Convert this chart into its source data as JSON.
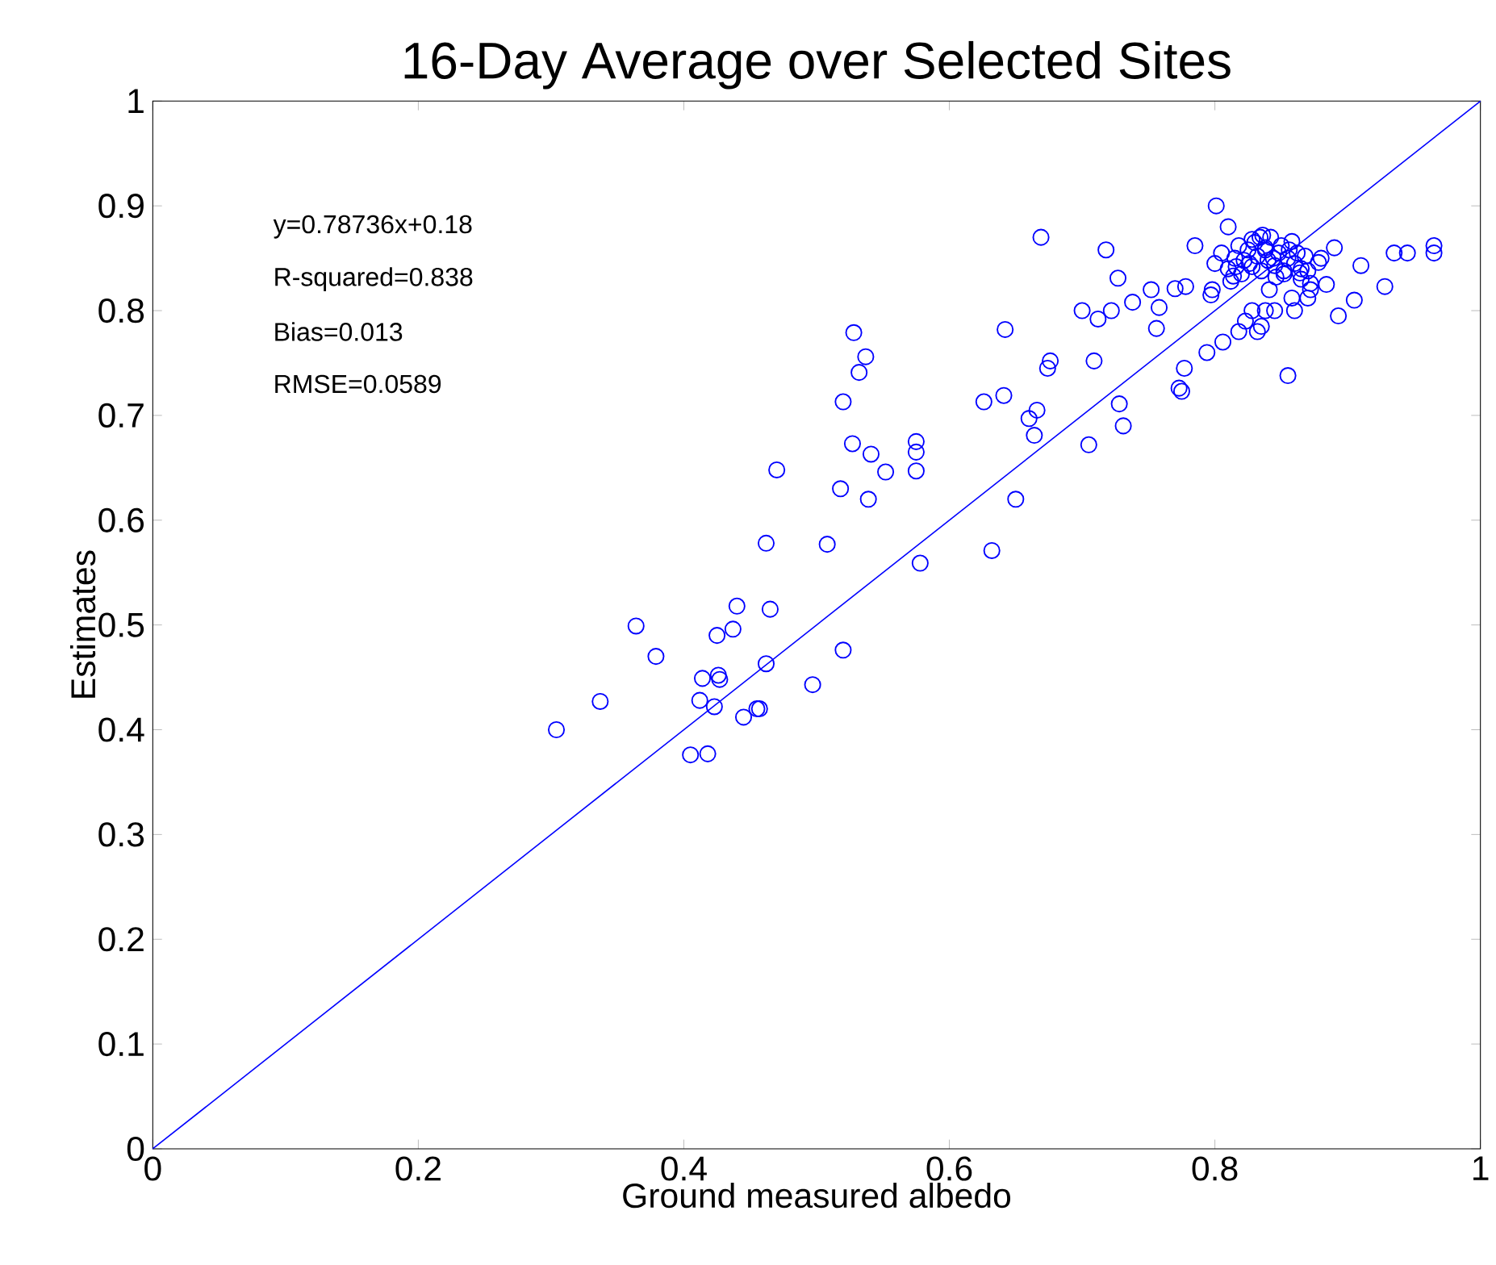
{
  "chart_data": {
    "type": "scatter",
    "title": "16-Day Average over Selected Sites",
    "xlabel": "Ground measured albedo",
    "ylabel": "Estimates",
    "annotations": [
      "y=0.78736x+0.18",
      "R-squared=0.838",
      "Bias=0.013",
      "RMSE=0.0589"
    ],
    "xlim": [
      0,
      1
    ],
    "ylim": [
      0,
      1
    ],
    "xticks": [
      0,
      0.2,
      0.4,
      0.6,
      0.8,
      1
    ],
    "yticks": [
      0,
      0.1,
      0.2,
      0.3,
      0.4,
      0.5,
      0.6,
      0.7,
      0.8,
      0.9,
      1
    ],
    "series": [
      {
        "color": "#0000ff",
        "marker": "circle",
        "x": [
          0.304,
          0.337,
          0.364,
          0.379,
          0.405,
          0.418,
          0.412,
          0.414,
          0.423,
          0.425,
          0.426,
          0.427,
          0.437,
          0.44,
          0.445,
          0.455,
          0.457,
          0.462,
          0.462,
          0.465,
          0.47,
          0.497,
          0.508,
          0.518,
          0.52,
          0.52,
          0.527,
          0.528,
          0.532,
          0.537,
          0.539,
          0.541,
          0.552,
          0.575,
          0.575,
          0.575,
          0.578,
          0.626,
          0.632,
          0.641,
          0.642,
          0.65,
          0.66,
          0.664,
          0.666,
          0.669,
          0.674,
          0.676,
          0.7,
          0.705,
          0.709,
          0.712,
          0.718,
          0.722,
          0.727,
          0.728,
          0.731,
          0.738,
          0.752,
          0.756,
          0.758,
          0.77,
          0.773,
          0.775,
          0.777,
          0.778,
          0.785,
          0.794,
          0.797,
          0.798,
          0.801,
          0.8,
          0.806,
          0.81,
          0.814,
          0.818,
          0.823,
          0.828,
          0.832,
          0.835,
          0.838,
          0.841,
          0.845,
          0.855,
          0.858,
          0.86,
          0.865,
          0.87,
          0.872,
          0.88,
          0.884,
          0.89,
          0.893,
          0.905,
          0.91,
          0.928,
          0.935,
          0.945,
          0.965,
          0.965,
          0.805,
          0.81,
          0.815,
          0.818,
          0.82,
          0.822,
          0.825,
          0.828,
          0.83,
          0.832,
          0.835,
          0.838,
          0.84,
          0.842,
          0.845,
          0.848,
          0.85,
          0.852,
          0.855,
          0.858,
          0.86,
          0.862,
          0.865,
          0.868,
          0.87,
          0.812,
          0.826,
          0.834,
          0.846,
          0.856,
          0.864,
          0.872,
          0.878,
          0.816,
          0.836,
          0.844,
          0.852,
          0.838,
          0.828
        ],
        "values": [
          0.4,
          0.427,
          0.499,
          0.47,
          0.376,
          0.377,
          0.428,
          0.449,
          0.422,
          0.49,
          0.452,
          0.448,
          0.496,
          0.518,
          0.412,
          0.42,
          0.42,
          0.463,
          0.578,
          0.515,
          0.648,
          0.443,
          0.577,
          0.63,
          0.476,
          0.713,
          0.673,
          0.779,
          0.741,
          0.756,
          0.62,
          0.663,
          0.646,
          0.675,
          0.665,
          0.647,
          0.559,
          0.713,
          0.571,
          0.719,
          0.782,
          0.62,
          0.697,
          0.681,
          0.705,
          0.87,
          0.745,
          0.752,
          0.8,
          0.672,
          0.752,
          0.792,
          0.858,
          0.8,
          0.831,
          0.711,
          0.69,
          0.808,
          0.82,
          0.783,
          0.803,
          0.821,
          0.726,
          0.723,
          0.745,
          0.823,
          0.862,
          0.76,
          0.815,
          0.82,
          0.9,
          0.845,
          0.77,
          0.88,
          0.833,
          0.78,
          0.79,
          0.8,
          0.78,
          0.785,
          0.8,
          0.82,
          0.8,
          0.738,
          0.812,
          0.8,
          0.83,
          0.812,
          0.82,
          0.85,
          0.825,
          0.86,
          0.795,
          0.81,
          0.843,
          0.823,
          0.855,
          0.855,
          0.862,
          0.855,
          0.855,
          0.84,
          0.85,
          0.862,
          0.835,
          0.848,
          0.858,
          0.842,
          0.865,
          0.852,
          0.838,
          0.86,
          0.848,
          0.87,
          0.843,
          0.855,
          0.862,
          0.838,
          0.85,
          0.866,
          0.845,
          0.855,
          0.84,
          0.852,
          0.838,
          0.828,
          0.845,
          0.87,
          0.832,
          0.858,
          0.836,
          0.826,
          0.846,
          0.842,
          0.872,
          0.85,
          0.835,
          0.858,
          0.868
        ]
      },
      {
        "type": "line",
        "color": "#0000ff",
        "marker": "none",
        "line_style": "solid",
        "x": [
          0,
          1
        ],
        "values": [
          0,
          1
        ]
      }
    ]
  }
}
